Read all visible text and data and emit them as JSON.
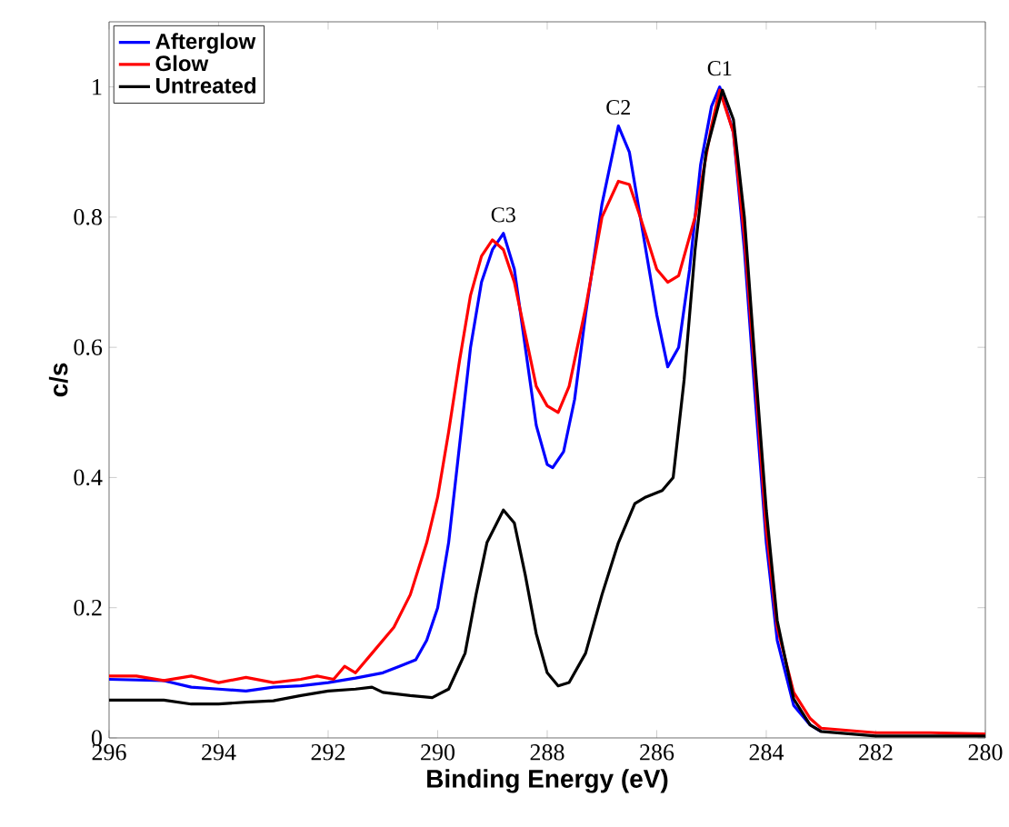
{
  "chart_data": {
    "type": "line",
    "xlabel": "Binding Energy (eV)",
    "ylabel": "c/s",
    "xlim": [
      296,
      280
    ],
    "ylim": [
      0,
      1.1
    ],
    "xticks": [
      296,
      294,
      292,
      290,
      288,
      286,
      284,
      282,
      280
    ],
    "yticks": [
      0,
      0.2,
      0.4,
      0.6,
      0.8,
      1
    ],
    "grid": false,
    "legend": "top left",
    "marker": "none",
    "line_style": "solid",
    "annotations": [
      {
        "text": "C1",
        "x": 284.85,
        "y": 1.0
      },
      {
        "text": "C2",
        "x": 286.7,
        "y": 0.94
      },
      {
        "text": "C3",
        "x": 288.8,
        "y": 0.775
      }
    ],
    "series": [
      {
        "name": "Afterglow",
        "color": "#0000ff",
        "x": [
          296,
          295,
          294.5,
          294,
          293.5,
          293,
          292.5,
          292,
          291.5,
          291,
          290.7,
          290.4,
          290.2,
          290,
          289.8,
          289.6,
          289.4,
          289.2,
          289,
          288.8,
          288.6,
          288.4,
          288.2,
          288,
          287.9,
          287.7,
          287.5,
          287.3,
          287,
          286.7,
          286.5,
          286.3,
          286,
          285.8,
          285.6,
          285.4,
          285.2,
          285,
          284.85,
          284.6,
          284.4,
          284.2,
          284,
          283.8,
          283.5,
          283.2,
          283
        ],
        "values": [
          0.09,
          0.088,
          0.078,
          0.075,
          0.072,
          0.078,
          0.08,
          0.085,
          0.092,
          0.1,
          0.11,
          0.12,
          0.15,
          0.2,
          0.3,
          0.45,
          0.6,
          0.7,
          0.75,
          0.775,
          0.72,
          0.6,
          0.48,
          0.42,
          0.415,
          0.44,
          0.52,
          0.65,
          0.82,
          0.94,
          0.9,
          0.8,
          0.65,
          0.57,
          0.6,
          0.72,
          0.88,
          0.97,
          1.0,
          0.93,
          0.75,
          0.52,
          0.3,
          0.15,
          0.05,
          0.02,
          0.01
        ]
      },
      {
        "name": "Glow",
        "color": "#ff0000",
        "x": [
          296,
          295.5,
          295,
          294.5,
          294,
          293.5,
          293,
          292.5,
          292.2,
          291.9,
          291.7,
          291.5,
          291.2,
          290.8,
          290.5,
          290.2,
          290,
          289.8,
          289.6,
          289.4,
          289.2,
          289,
          288.8,
          288.6,
          288.4,
          288.2,
          288,
          287.8,
          287.6,
          287.3,
          287,
          286.7,
          286.5,
          286.3,
          286,
          285.8,
          285.6,
          285.3,
          285,
          284.85,
          284.6,
          284.4,
          284.2,
          284,
          283.8,
          283.5,
          283.2,
          283,
          282,
          281,
          280
        ],
        "values": [
          0.095,
          0.095,
          0.088,
          0.095,
          0.085,
          0.093,
          0.085,
          0.09,
          0.095,
          0.09,
          0.11,
          0.1,
          0.13,
          0.17,
          0.22,
          0.3,
          0.37,
          0.47,
          0.58,
          0.68,
          0.74,
          0.765,
          0.75,
          0.7,
          0.62,
          0.54,
          0.51,
          0.5,
          0.54,
          0.66,
          0.8,
          0.855,
          0.85,
          0.8,
          0.72,
          0.7,
          0.71,
          0.8,
          0.94,
          0.995,
          0.93,
          0.77,
          0.55,
          0.32,
          0.17,
          0.07,
          0.03,
          0.015,
          0.008,
          0.008,
          0.006
        ]
      },
      {
        "name": "Untreated",
        "color": "#000000",
        "x": [
          296,
          295,
          294.5,
          294,
          293.5,
          293,
          292.5,
          292,
          291.5,
          291.2,
          291,
          290.5,
          290.1,
          289.8,
          289.5,
          289.3,
          289.1,
          288.8,
          288.6,
          288.4,
          288.2,
          288,
          287.8,
          287.6,
          287.3,
          287,
          286.7,
          286.4,
          286.2,
          285.9,
          285.7,
          285.5,
          285.3,
          285.1,
          284.8,
          284.6,
          284.4,
          284.2,
          284,
          283.8,
          283.5,
          283.2,
          283,
          282,
          280
        ],
        "values": [
          0.058,
          0.058,
          0.052,
          0.052,
          0.055,
          0.057,
          0.065,
          0.072,
          0.075,
          0.078,
          0.07,
          0.065,
          0.062,
          0.075,
          0.13,
          0.22,
          0.3,
          0.35,
          0.33,
          0.25,
          0.16,
          0.1,
          0.08,
          0.085,
          0.13,
          0.22,
          0.3,
          0.36,
          0.37,
          0.38,
          0.4,
          0.55,
          0.75,
          0.9,
          0.995,
          0.95,
          0.8,
          0.57,
          0.35,
          0.18,
          0.06,
          0.02,
          0.01,
          0.003,
          0.003
        ]
      }
    ]
  }
}
